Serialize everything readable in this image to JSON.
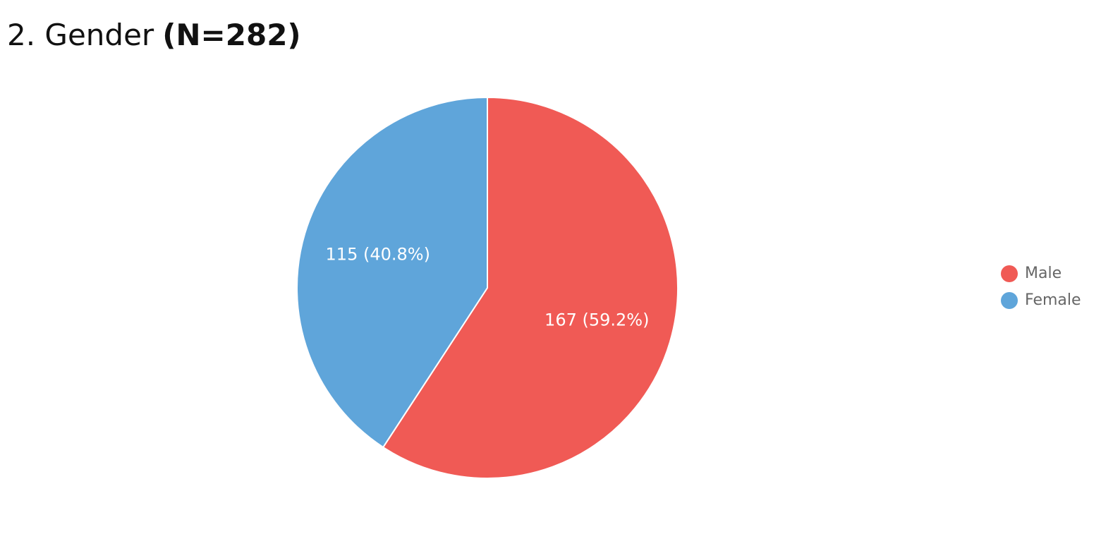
{
  "chart_data": {
    "type": "pie",
    "title": "2. Gender",
    "title_emphasis": "(N=282)",
    "categories": [
      "Male",
      "Female"
    ],
    "values": [
      167,
      115
    ],
    "value_labels": [
      "167 (59.2%)",
      "115 (40.8%)"
    ],
    "colors": [
      "#f05a55",
      "#5fa5da"
    ],
    "legend": "right"
  }
}
